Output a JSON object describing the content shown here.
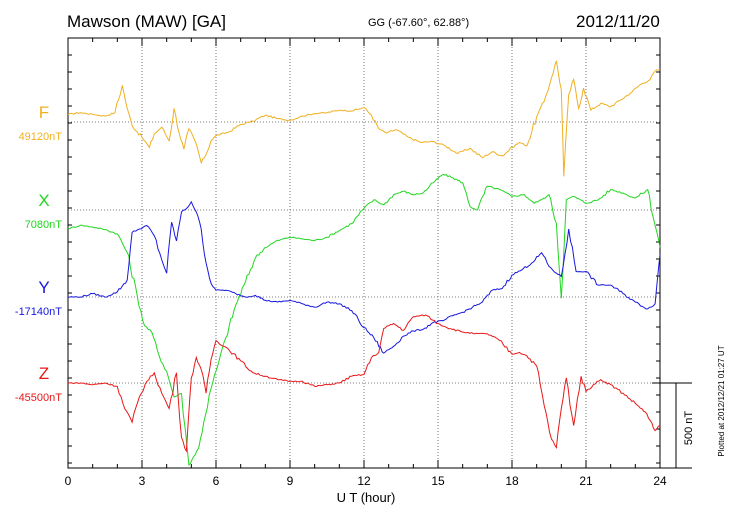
{
  "header": {
    "station": "Mawson (MAW)  [GA]",
    "coords": "GG (-67.60°,  62.88°)",
    "date": "2012/11/20"
  },
  "footer_note": "Plotted at 2012/12/21 01:27 UT",
  "scale_label": "500 nT",
  "chart_data": {
    "type": "line",
    "xlabel": "U T (hour)",
    "xlim": [
      0,
      24
    ],
    "x_ticks": [
      "0",
      "3",
      "6",
      "9",
      "12",
      "15",
      "18",
      "21",
      "24"
    ],
    "y_units": "nT",
    "scale_bar_nT": 500,
    "grid": true,
    "series": [
      {
        "name": "F",
        "baseline_label": "49120nT",
        "baseline": 49120,
        "color": "#f0b020",
        "x": [
          0,
          0.5,
          1.0,
          1.5,
          1.9,
          2.2,
          2.4,
          2.6,
          3.0,
          3.3,
          3.5,
          3.8,
          4.1,
          4.3,
          4.5,
          4.7,
          4.9,
          5.2,
          5.4,
          5.6,
          5.8,
          6.0,
          6.5,
          7.0,
          7.5,
          8.0,
          8.5,
          9.0,
          9.5,
          10.0,
          10.5,
          11.0,
          11.5,
          12.0,
          12.3,
          12.6,
          12.9,
          13.3,
          13.8,
          14.3,
          14.8,
          15.3,
          15.8,
          16.3,
          16.8,
          17.2,
          17.6,
          18.0,
          18.3,
          18.6,
          19.0,
          19.3,
          19.6,
          19.8,
          20.0,
          20.1,
          20.3,
          20.5,
          20.7,
          20.9,
          21.2,
          21.6,
          22.0,
          22.4,
          22.8,
          23.2,
          23.6,
          23.8,
          24.0
        ],
        "y": [
          45,
          55,
          45,
          35,
          55,
          215,
          80,
          -20,
          -90,
          -150,
          -70,
          -30,
          -110,
          80,
          -60,
          -160,
          -40,
          -130,
          -240,
          -190,
          -110,
          -80,
          -60,
          -15,
          5,
          40,
          20,
          10,
          35,
          50,
          55,
          70,
          65,
          85,
          40,
          -40,
          -65,
          -45,
          -90,
          -120,
          -115,
          -140,
          -185,
          -155,
          -210,
          -175,
          -200,
          -150,
          -120,
          -140,
          30,
          120,
          260,
          360,
          190,
          -320,
          160,
          250,
          80,
          200,
          70,
          110,
          90,
          130,
          170,
          220,
          250,
          300,
          310
        ]
      },
      {
        "name": "X",
        "baseline_label": "7080nT",
        "baseline": 7080,
        "color": "#22d622",
        "x": [
          0,
          0.5,
          1.0,
          1.5,
          2.0,
          2.4,
          2.8,
          3.1,
          3.4,
          3.7,
          4.0,
          4.3,
          4.6,
          4.9,
          5.1,
          5.3,
          5.5,
          5.8,
          6.1,
          6.4,
          6.8,
          7.2,
          7.6,
          8.0,
          8.5,
          9.0,
          9.5,
          10.0,
          10.5,
          11.0,
          11.5,
          12.0,
          12.4,
          12.8,
          13.2,
          13.6,
          14.0,
          14.4,
          14.8,
          15.2,
          15.6,
          16.0,
          16.3,
          16.6,
          17.0,
          17.5,
          18.0,
          18.5,
          18.9,
          19.2,
          19.5,
          19.8,
          20.0,
          20.2,
          20.5,
          21.0,
          21.5,
          22.0,
          22.5,
          23.0,
          23.5,
          24.0
        ],
        "y": [
          -110,
          -90,
          -100,
          -115,
          -140,
          -250,
          -500,
          -680,
          -720,
          -860,
          -950,
          -1100,
          -1080,
          -1500,
          -1450,
          -1400,
          -1250,
          -1050,
          -900,
          -750,
          -560,
          -420,
          -280,
          -220,
          -180,
          -160,
          -170,
          -180,
          -160,
          -120,
          -80,
          10,
          60,
          30,
          90,
          110,
          90,
          100,
          160,
          210,
          190,
          160,
          20,
          0,
          140,
          120,
          80,
          90,
          40,
          60,
          90,
          -80,
          -520,
          60,
          80,
          40,
          60,
          120,
          100,
          70,
          120,
          -220
        ]
      },
      {
        "name": "Y",
        "baseline_label": "-17140nT",
        "baseline": -17140,
        "color": "#1818e0",
        "x": [
          0,
          0.5,
          1.0,
          1.5,
          2.0,
          2.4,
          2.6,
          2.9,
          3.2,
          3.5,
          3.8,
          4.0,
          4.2,
          4.4,
          4.6,
          4.8,
          5.0,
          5.2,
          5.4,
          5.6,
          5.8,
          6.0,
          6.4,
          6.8,
          7.2,
          7.6,
          8.0,
          8.5,
          9.0,
          9.5,
          10.0,
          10.5,
          11.0,
          11.5,
          12.0,
          12.4,
          12.8,
          13.2,
          13.6,
          14.0,
          14.4,
          14.8,
          15.2,
          15.6,
          16.0,
          16.4,
          16.8,
          17.2,
          17.6,
          18.0,
          18.4,
          18.8,
          19.2,
          19.5,
          19.8,
          20.0,
          20.3,
          20.6,
          21.0,
          21.5,
          22.0,
          22.5,
          23.0,
          23.5,
          23.8,
          24.0
        ],
        "y": [
          0,
          0,
          20,
          0,
          30,
          100,
          380,
          400,
          420,
          360,
          220,
          140,
          440,
          330,
          500,
          520,
          560,
          500,
          400,
          200,
          80,
          40,
          40,
          20,
          0,
          10,
          -20,
          -30,
          -20,
          -40,
          -60,
          -30,
          -40,
          -80,
          -180,
          -240,
          -330,
          -290,
          -230,
          -200,
          -190,
          -150,
          -140,
          -110,
          -90,
          -60,
          -30,
          40,
          50,
          130,
          160,
          200,
          260,
          180,
          140,
          120,
          400,
          150,
          150,
          70,
          70,
          20,
          -30,
          -70,
          -40,
          250
        ]
      },
      {
        "name": "Z",
        "baseline_label": "-45500nT",
        "baseline": -45500,
        "color": "#e81818",
        "x": [
          0,
          0.5,
          1.0,
          1.5,
          2.0,
          2.3,
          2.6,
          2.9,
          3.2,
          3.5,
          3.8,
          4.1,
          4.4,
          4.6,
          4.8,
          5.0,
          5.2,
          5.4,
          5.6,
          5.8,
          6.0,
          6.5,
          7.0,
          7.5,
          8.0,
          8.5,
          9.0,
          9.5,
          10.0,
          10.5,
          11.0,
          11.5,
          12.0,
          12.3,
          12.6,
          12.8,
          13.2,
          13.6,
          14.0,
          14.5,
          15.0,
          15.5,
          16.0,
          16.5,
          17.0,
          17.5,
          18.0,
          18.3,
          18.6,
          19.0,
          19.3,
          19.6,
          19.8,
          20.0,
          20.2,
          20.5,
          20.8,
          21.0,
          21.3,
          21.6,
          22.0,
          22.5,
          23.0,
          23.4,
          23.8,
          24.0
        ],
        "y": [
          0,
          0,
          -10,
          0,
          -20,
          -150,
          -230,
          -80,
          10,
          60,
          -60,
          -150,
          60,
          -320,
          -400,
          30,
          150,
          80,
          -60,
          140,
          250,
          200,
          130,
          60,
          40,
          20,
          10,
          10,
          -20,
          -10,
          0,
          40,
          50,
          150,
          180,
          320,
          350,
          310,
          390,
          400,
          350,
          320,
          300,
          290,
          290,
          250,
          170,
          180,
          160,
          100,
          -130,
          -330,
          -380,
          -150,
          30,
          -250,
          40,
          -50,
          -10,
          20,
          -10,
          -60,
          -120,
          -170,
          -280,
          -250
        ]
      }
    ]
  }
}
